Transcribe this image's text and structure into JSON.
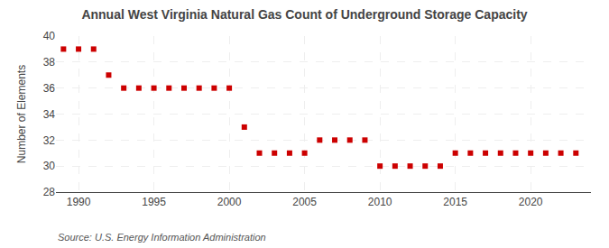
{
  "chart_data": {
    "type": "scatter",
    "title": "Annual West Virginia Natural Gas Count of Underground Storage Capacity",
    "ylabel": "Number of Elements",
    "annotations": [
      "Source: U.S. Energy Information Administration"
    ],
    "x": [
      1989,
      1990,
      1991,
      1992,
      1993,
      1994,
      1995,
      1996,
      1997,
      1998,
      1999,
      2000,
      2001,
      2002,
      2003,
      2004,
      2005,
      2006,
      2007,
      2008,
      2009,
      2010,
      2011,
      2012,
      2013,
      2014,
      2015,
      2016,
      2017,
      2018,
      2019,
      2020,
      2021,
      2022,
      2023
    ],
    "values": [
      39,
      39,
      39,
      37,
      36,
      36,
      36,
      36,
      36,
      36,
      36,
      36,
      33,
      31,
      31,
      31,
      31,
      32,
      32,
      32,
      32,
      30,
      30,
      30,
      30,
      30,
      31,
      31,
      31,
      31,
      31,
      31,
      31,
      31,
      31
    ],
    "color": "#cc0000",
    "marker": "square",
    "xlim": [
      1988.5,
      2024
    ],
    "xticks": [
      1990,
      1995,
      2000,
      2005,
      2010,
      2015,
      2020
    ],
    "ylim": [
      28,
      40
    ],
    "yticks": [
      28,
      30,
      32,
      34,
      36,
      38,
      40
    ],
    "grid": true
  }
}
